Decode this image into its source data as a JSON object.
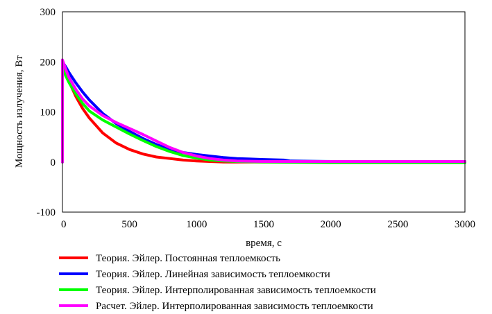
{
  "chart_data": {
    "type": "line",
    "title": "",
    "xlabel": "время, с",
    "ylabel": "Мощность излучения, Вт",
    "xlim": [
      0,
      3000
    ],
    "ylim": [
      -100,
      300
    ],
    "x_ticks": [
      "0",
      "500",
      "1000",
      "1500",
      "2000",
      "2500",
      "3000"
    ],
    "y_ticks": [
      "-100",
      "0",
      "100",
      "200",
      "300"
    ],
    "grid": false,
    "legend_position": "bottom",
    "series": [
      {
        "name": "Теория. Эйлер. Постоянная теплоемкость",
        "color": "#ff0000",
        "x": [
          0,
          0,
          25,
          50,
          100,
          150,
          200,
          300,
          400,
          500,
          600,
          700,
          800,
          900,
          1000,
          1100,
          1200,
          1300,
          1500,
          2000,
          2500,
          3000
        ],
        "y": [
          0,
          197,
          178,
          160,
          131,
          107,
          88,
          58,
          38,
          25,
          16,
          10,
          7,
          4,
          2,
          1,
          0,
          0,
          0,
          0,
          0,
          0
        ]
      },
      {
        "name": "Теория. Эйлер. Линейная зависимость теплоемкости",
        "color": "#0000ff",
        "x": [
          0,
          0,
          25,
          50,
          100,
          150,
          200,
          300,
          400,
          500,
          600,
          700,
          800,
          900,
          1000,
          1100,
          1200,
          1300,
          1400,
          1500,
          1650,
          1700,
          2000,
          2500,
          3000
        ],
        "y": [
          0,
          200,
          190,
          178,
          158,
          140,
          124,
          97,
          77,
          61,
          47,
          35,
          25,
          19,
          15,
          12,
          9,
          7,
          6,
          5,
          4,
          2,
          1,
          1,
          1
        ]
      },
      {
        "name": "Теория. Эйлер. Интерполированная зависимость теплоемкости",
        "color": "#00ff00",
        "x": [
          0,
          0,
          25,
          50,
          100,
          150,
          200,
          300,
          400,
          500,
          600,
          700,
          800,
          900,
          1000,
          1100,
          1200,
          1300,
          1500,
          2000,
          2500,
          3000
        ],
        "y": [
          0,
          188,
          172,
          158,
          136,
          117,
          102,
          84,
          70,
          56,
          43,
          31,
          21,
          13,
          8,
          4,
          2,
          1,
          0,
          -1,
          -1,
          -1
        ]
      },
      {
        "name": "Расчет. Эйлер. Интерполированная зависимость теплоемкости",
        "color": "#ff00ff",
        "x": [
          0,
          0,
          25,
          50,
          100,
          150,
          200,
          300,
          400,
          500,
          600,
          700,
          800,
          900,
          1000,
          1100,
          1200,
          1300,
          1500,
          2000,
          2500,
          3000
        ],
        "y": [
          0,
          204,
          185,
          168,
          145,
          126,
          112,
          93,
          79,
          67,
          55,
          42,
          29,
          19,
          12,
          7,
          4,
          2,
          1,
          1,
          1,
          1
        ]
      }
    ]
  }
}
